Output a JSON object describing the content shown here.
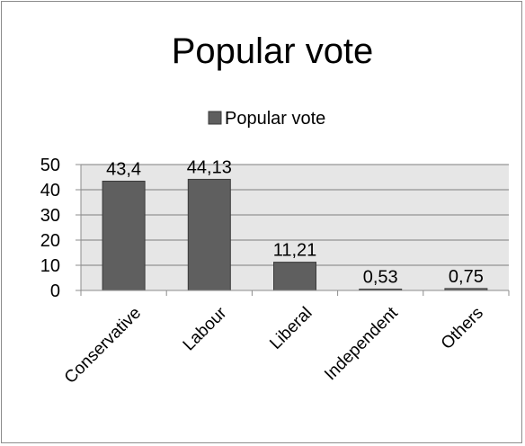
{
  "chart_data": {
    "type": "bar",
    "title": "Popular vote",
    "categories": [
      "Conservative",
      "Labour",
      "Liberal",
      "Independent",
      "Others"
    ],
    "series": [
      {
        "name": "Popular vote",
        "values": [
          43.4,
          44.13,
          11.21,
          0.53,
          0.75
        ]
      }
    ],
    "data_labels": [
      "43,4",
      "44,13",
      "11,21",
      "0,53",
      "0,75"
    ],
    "y_ticks": [
      "0",
      "10",
      "20",
      "30",
      "40",
      "50"
    ],
    "ylim": [
      0,
      50
    ],
    "grid": true,
    "legend_position": "top",
    "colors": {
      "bar": "#5f5f5f",
      "bar_stroke": "#3a3a3a",
      "plot_background": "#e6e6e6",
      "gridline": "#7f7f7f",
      "axis": "#8c8c8c"
    }
  }
}
